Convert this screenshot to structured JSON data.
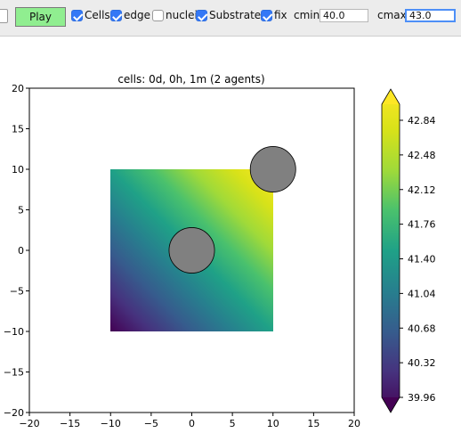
{
  "toolbar": {
    "play_label": "Play",
    "cells_label": "Cells",
    "cells_checked": true,
    "edge_label": "edge",
    "edge_checked": true,
    "nuclei_label": "nuclei",
    "nuclei_checked": false,
    "substrates_label": "Substrates",
    "substrates_checked": true,
    "fix_label": "fix",
    "fix_checked": true,
    "cmin_label": "cmin",
    "cmin_value": "40.0",
    "cmax_label": "cmax",
    "cmax_value": "43.0",
    "play_color": "#90ee90",
    "checkbox_color": "#3478f6"
  },
  "plot": {
    "title": "cells: 0d, 0h, 1m (2 agents)",
    "xlim": [
      -20,
      20
    ],
    "ylim": [
      -20,
      20
    ],
    "xticks": [
      -20,
      -15,
      -10,
      -5,
      0,
      5,
      10,
      15,
      20
    ],
    "yticks": [
      -20,
      -15,
      -10,
      -5,
      0,
      5,
      10,
      15,
      20
    ],
    "xtick_labels": [
      "−20",
      "−15",
      "−10",
      "−5",
      "0",
      "5",
      "10",
      "15",
      "20"
    ],
    "ytick_labels": [
      "−20",
      "−15",
      "−10",
      "−5",
      "0",
      "5",
      "10",
      "15",
      "20"
    ],
    "substrate_region": {
      "x": [
        -10,
        10
      ],
      "y": [
        -10,
        10
      ],
      "colormap": "viridis"
    },
    "cells": [
      {
        "x": 0,
        "y": 0,
        "radius": 2.8,
        "color": "#808080"
      },
      {
        "x": 10,
        "y": 10,
        "radius": 2.8,
        "color": "#808080"
      }
    ]
  },
  "colorbar": {
    "ticks": [
      "39.96",
      "40.32",
      "40.68",
      "41.04",
      "41.40",
      "41.76",
      "42.12",
      "42.48",
      "42.84"
    ],
    "extend": "both",
    "min_color": "#440154",
    "max_color": "#fde725"
  }
}
